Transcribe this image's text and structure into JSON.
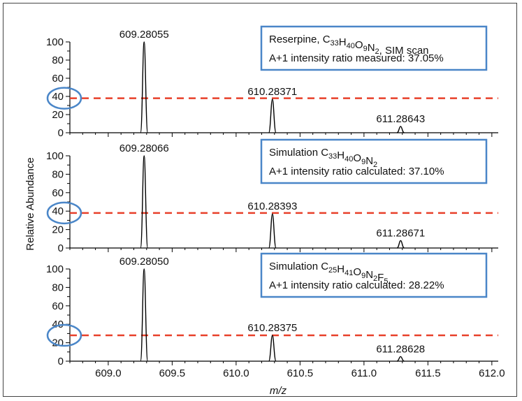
{
  "chart_data": {
    "type": "line",
    "xlabel": "m/z",
    "ylabel": "Relative Abundance",
    "xlim": [
      608.7,
      612.05
    ],
    "ylim": [
      0,
      100
    ],
    "xticks": [
      "609.0",
      "609.5",
      "610.0",
      "610.5",
      "611.0",
      "611.5",
      "612.0"
    ],
    "yticks": [
      "0",
      "20",
      "40",
      "60",
      "80",
      "100"
    ],
    "reference_line_color": "#e8402a",
    "highlight_circle_color": "#4a86c8",
    "box_border_color": "#4a86c8",
    "panels": [
      {
        "box_line1": {
          "pre": "Reserpine, C",
          "s1": "33",
          "h": "H",
          "s2": "40",
          "o": "O",
          "s3": "9",
          "n": "N",
          "s4": "2",
          "post": ", SIM scan"
        },
        "box_line2": "A+1 intensity  ratio measured: 37.05%",
        "reference_level": 38,
        "peaks": [
          {
            "mz": 609.28055,
            "label": "609.28055",
            "abundance": 100
          },
          {
            "mz": 610.28371,
            "label": "610.28371",
            "abundance": 37
          },
          {
            "mz": 611.28643,
            "label": "611.28643",
            "abundance": 7
          }
        ]
      },
      {
        "box_line1": {
          "pre": "Simulation C",
          "s1": "33",
          "h": "H",
          "s2": "40",
          "o": "O",
          "s3": "9",
          "n": "N",
          "s4": "2",
          "post": ""
        },
        "box_line2": "A+1 intensity  ratio calculated: 37.10%",
        "reference_level": 38,
        "peaks": [
          {
            "mz": 609.28066,
            "label": "609.28066",
            "abundance": 100
          },
          {
            "mz": 610.28393,
            "label": "610.28393",
            "abundance": 37
          },
          {
            "mz": 611.28671,
            "label": "611.28671",
            "abundance": 8
          }
        ]
      },
      {
        "box_line1": {
          "pre": "Simulation C",
          "s1": "25",
          "h": "H",
          "s2": "41",
          "o": "O",
          "s3": "9",
          "n": "N",
          "s4": "2",
          "post": "F",
          "s5": "5"
        },
        "box_line2": "A+1 intensity  ratio calculated: 28.22%",
        "reference_level": 28,
        "peaks": [
          {
            "mz": 609.2805,
            "label": "609.28050",
            "abundance": 100
          },
          {
            "mz": 610.28375,
            "label": "610.28375",
            "abundance": 28
          },
          {
            "mz": 611.28628,
            "label": "611.28628",
            "abundance": 5
          }
        ]
      }
    ]
  }
}
